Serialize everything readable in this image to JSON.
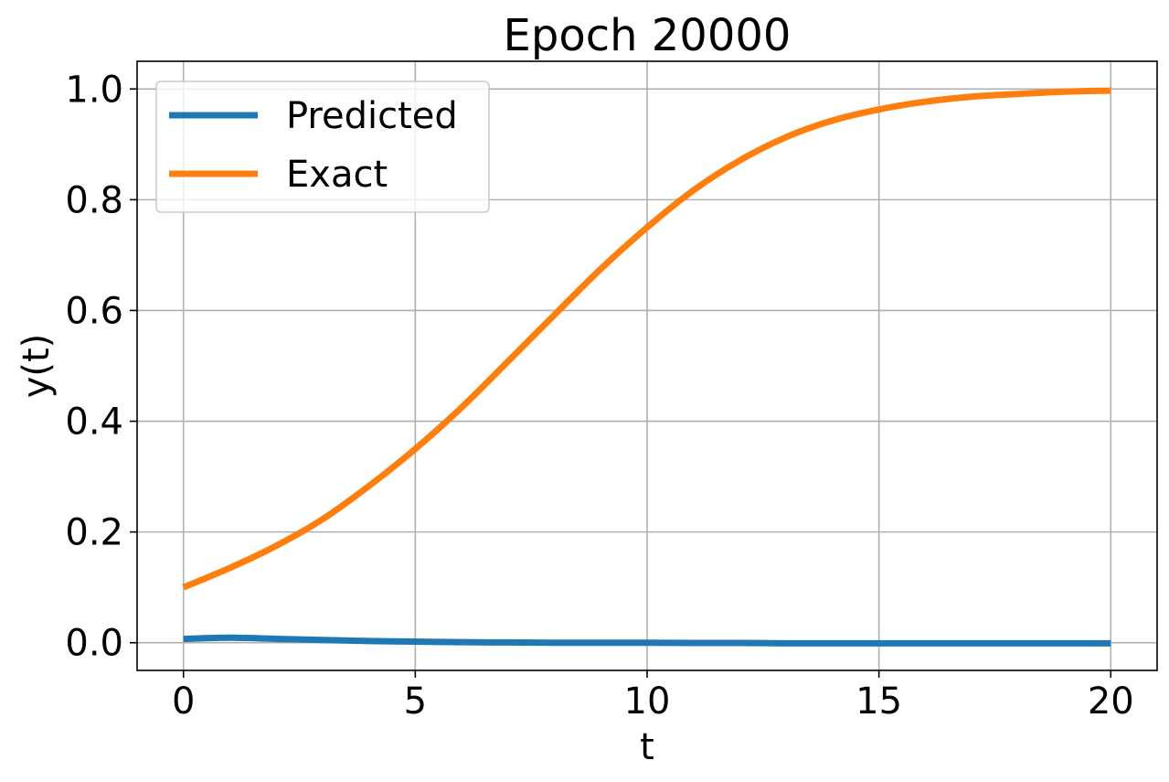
{
  "chart_data": {
    "type": "line",
    "title": "Epoch 20000",
    "xlabel": "t",
    "ylabel": "y(t)",
    "xlim": [
      -1,
      21
    ],
    "ylim": [
      -0.05,
      1.05
    ],
    "xticks": [
      0,
      5,
      10,
      15,
      20
    ],
    "xtick_labels": [
      "0",
      "5",
      "10",
      "15",
      "20"
    ],
    "yticks": [
      0.0,
      0.2,
      0.4,
      0.6,
      0.8,
      1.0
    ],
    "ytick_labels": [
      "0.0",
      "0.2",
      "0.4",
      "0.6",
      "0.8",
      "1.0"
    ],
    "grid": true,
    "legend_position": "top-left",
    "series": [
      {
        "name": "Predicted",
        "color": "#1f77b4",
        "x": [
          0,
          1,
          2,
          3,
          4,
          5,
          6,
          7,
          8,
          9,
          10,
          11,
          12,
          13,
          14,
          15,
          16,
          17,
          18,
          19,
          20
        ],
        "y": [
          0.007,
          0.009,
          0.007,
          0.005,
          0.003,
          0.002,
          0.001,
          0.0005,
          0.0,
          0.0,
          0.0,
          -0.0005,
          -0.0005,
          -0.001,
          -0.001,
          -0.001,
          -0.001,
          -0.001,
          -0.001,
          -0.001,
          -0.001
        ]
      },
      {
        "name": "Exact",
        "color": "#ff7f0e",
        "x": [
          0,
          1,
          2,
          3,
          4,
          5,
          6,
          7,
          8,
          9,
          10,
          11,
          12,
          13,
          14,
          15,
          16,
          17,
          18,
          19,
          20
        ],
        "y": [
          0.1,
          0.135,
          0.175,
          0.223,
          0.283,
          0.35,
          0.425,
          0.508,
          0.592,
          0.675,
          0.75,
          0.817,
          0.871,
          0.913,
          0.943,
          0.963,
          0.977,
          0.986,
          0.991,
          0.995,
          0.997
        ]
      }
    ]
  }
}
